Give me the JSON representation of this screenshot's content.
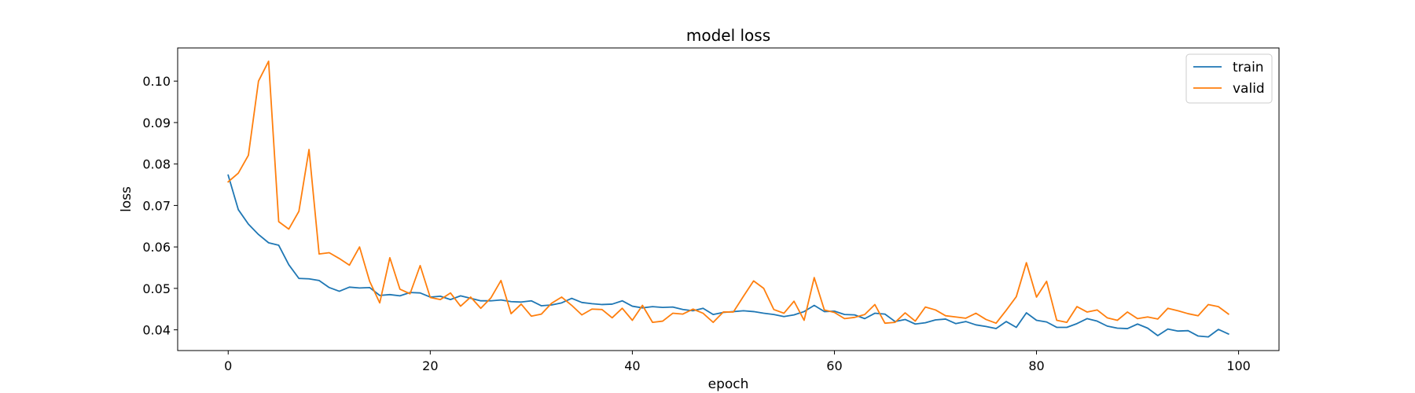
{
  "chart_data": {
    "type": "line",
    "title": "model loss",
    "xlabel": "epoch",
    "ylabel": "loss",
    "xlim": [
      -5,
      104
    ],
    "ylim": [
      0.035,
      0.108
    ],
    "xticks": [
      0,
      20,
      40,
      60,
      80,
      100
    ],
    "xtick_labels": [
      "0",
      "20",
      "40",
      "60",
      "80",
      "100"
    ],
    "yticks": [
      0.04,
      0.05,
      0.06,
      0.07,
      0.08,
      0.09,
      0.1
    ],
    "ytick_labels": [
      "0.04",
      "0.05",
      "0.06",
      "0.07",
      "0.08",
      "0.09",
      "0.10"
    ],
    "grid": false,
    "legend_position": "top-right",
    "series": [
      {
        "name": "train",
        "color": "#1f77b4",
        "values": [
          0.0773,
          0.069,
          0.0655,
          0.063,
          0.061,
          0.0604,
          0.0557,
          0.0524,
          0.0523,
          0.0519,
          0.0502,
          0.0493,
          0.0503,
          0.0501,
          0.0502,
          0.0483,
          0.0485,
          0.0482,
          0.049,
          0.0489,
          0.0479,
          0.0481,
          0.0473,
          0.0482,
          0.0476,
          0.047,
          0.047,
          0.0472,
          0.0468,
          0.0467,
          0.047,
          0.0458,
          0.046,
          0.0465,
          0.0476,
          0.0466,
          0.0463,
          0.0461,
          0.0462,
          0.047,
          0.0457,
          0.0453,
          0.0456,
          0.0454,
          0.0455,
          0.0449,
          0.0446,
          0.0452,
          0.0437,
          0.0442,
          0.0444,
          0.0446,
          0.0444,
          0.044,
          0.0437,
          0.0432,
          0.0436,
          0.0444,
          0.0459,
          0.0444,
          0.0445,
          0.0437,
          0.0436,
          0.0427,
          0.044,
          0.0438,
          0.042,
          0.0425,
          0.0414,
          0.0417,
          0.0424,
          0.0426,
          0.0415,
          0.042,
          0.0412,
          0.0408,
          0.0403,
          0.042,
          0.0406,
          0.0441,
          0.0423,
          0.0419,
          0.0406,
          0.0406,
          0.0415,
          0.0427,
          0.0421,
          0.0409,
          0.0404,
          0.0403,
          0.0414,
          0.0404,
          0.0386,
          0.0402,
          0.0397,
          0.0398,
          0.0385,
          0.0383,
          0.0401,
          0.039
        ]
      },
      {
        "name": "valid",
        "color": "#ff7f0e",
        "values": [
          0.0757,
          0.0778,
          0.0821,
          0.1,
          0.1048,
          0.0661,
          0.0643,
          0.0686,
          0.0835,
          0.0583,
          0.0586,
          0.0572,
          0.0556,
          0.06,
          0.0517,
          0.0465,
          0.0574,
          0.0498,
          0.0487,
          0.0555,
          0.0478,
          0.0473,
          0.0489,
          0.0457,
          0.0479,
          0.0452,
          0.0477,
          0.0519,
          0.0439,
          0.0462,
          0.0433,
          0.0438,
          0.0464,
          0.0479,
          0.0459,
          0.0436,
          0.045,
          0.0449,
          0.0429,
          0.0452,
          0.0423,
          0.0459,
          0.0418,
          0.0421,
          0.044,
          0.0438,
          0.045,
          0.044,
          0.0418,
          0.0443,
          0.0443,
          0.0481,
          0.0518,
          0.05,
          0.0449,
          0.044,
          0.0469,
          0.0423,
          0.0526,
          0.0448,
          0.0442,
          0.0427,
          0.043,
          0.0437,
          0.0461,
          0.0416,
          0.0418,
          0.0441,
          0.0421,
          0.0455,
          0.0448,
          0.0434,
          0.0431,
          0.0428,
          0.044,
          0.0425,
          0.0416,
          0.0447,
          0.048,
          0.0562,
          0.0479,
          0.0517,
          0.0423,
          0.0418,
          0.0456,
          0.0443,
          0.0448,
          0.0429,
          0.0423,
          0.0443,
          0.0427,
          0.0431,
          0.0426,
          0.0452,
          0.0446,
          0.0439,
          0.0434,
          0.0461,
          0.0456,
          0.0438
        ]
      }
    ]
  }
}
